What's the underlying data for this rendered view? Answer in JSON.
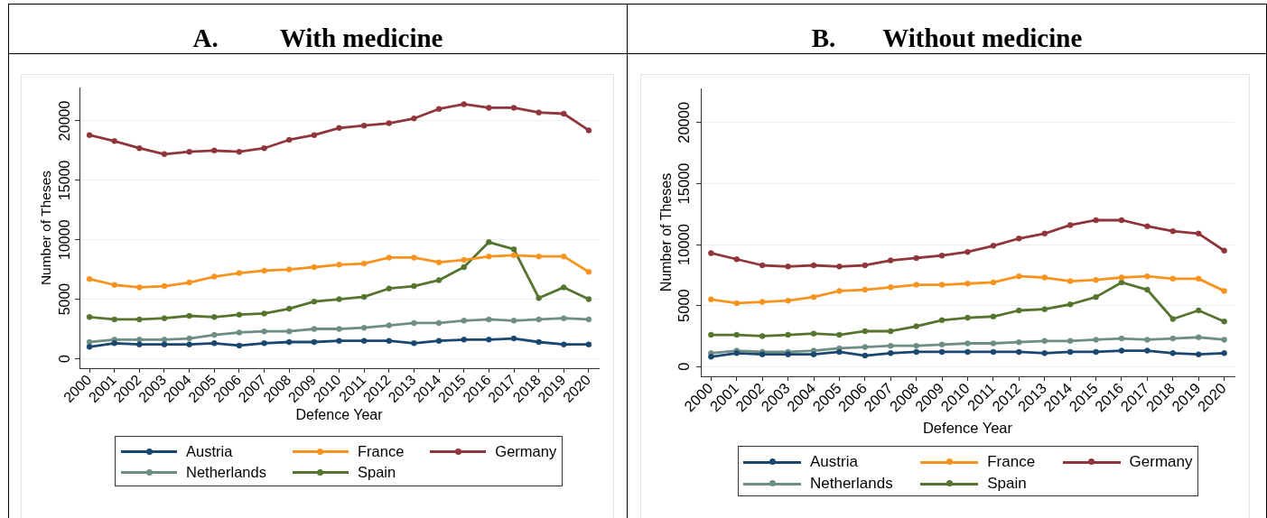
{
  "chart_data": [
    {
      "type": "line",
      "title": "A. With medicine",
      "xlabel": "Defence Year",
      "ylabel": "Number of Theses",
      "x": [
        2000,
        2001,
        2002,
        2003,
        2004,
        2005,
        2006,
        2007,
        2008,
        2009,
        2010,
        2011,
        2012,
        2013,
        2014,
        2015,
        2016,
        2017,
        2018,
        2019,
        2020
      ],
      "xlim": [
        1999.6,
        2020.4
      ],
      "xticks": [
        2000,
        2001,
        2002,
        2003,
        2004,
        2005,
        2006,
        2007,
        2008,
        2009,
        2010,
        2011,
        2012,
        2013,
        2014,
        2015,
        2016,
        2017,
        2018,
        2019,
        2020
      ],
      "ylim": [
        -800,
        22800
      ],
      "yticks": [
        0,
        5000,
        10000,
        15000,
        20000
      ],
      "grid": "y",
      "legend": "bottom",
      "marker": "circle",
      "series": [
        {
          "name": "Austria",
          "color": "#1a476f",
          "values": [
            1000,
            1300,
            1200,
            1200,
            1200,
            1300,
            1100,
            1300,
            1400,
            1400,
            1500,
            1500,
            1500,
            1300,
            1500,
            1600,
            1600,
            1700,
            1400,
            1200,
            1200
          ]
        },
        {
          "name": "France",
          "color": "#f7931e",
          "values": [
            6700,
            6200,
            6000,
            6100,
            6400,
            6900,
            7200,
            7400,
            7500,
            7700,
            7900,
            8000,
            8500,
            8500,
            8100,
            8300,
            8600,
            8700,
            8600,
            8600,
            7300
          ]
        },
        {
          "name": "Germany",
          "color": "#90353b",
          "values": [
            18800,
            18300,
            17700,
            17200,
            17400,
            17500,
            17400,
            17700,
            18400,
            18800,
            19400,
            19600,
            19800,
            20200,
            21000,
            21400,
            21100,
            21100,
            20700,
            20600,
            19200
          ]
        },
        {
          "name": "Netherlands",
          "color": "#6e8e84",
          "values": [
            1400,
            1600,
            1600,
            1600,
            1700,
            2000,
            2200,
            2300,
            2300,
            2500,
            2500,
            2600,
            2800,
            3000,
            3000,
            3200,
            3300,
            3200,
            3300,
            3400,
            3300
          ]
        },
        {
          "name": "Spain",
          "color": "#55752f",
          "values": [
            3500,
            3300,
            3300,
            3400,
            3600,
            3500,
            3700,
            3800,
            4200,
            4800,
            5000,
            5200,
            5900,
            6100,
            6600,
            7700,
            9800,
            9200,
            5100,
            6000,
            5000
          ]
        }
      ]
    },
    {
      "type": "line",
      "title": "B. Without medicine",
      "xlabel": "Defence Year",
      "ylabel": "Number of Theses",
      "x": [
        2000,
        2001,
        2002,
        2003,
        2004,
        2005,
        2006,
        2007,
        2008,
        2009,
        2010,
        2011,
        2012,
        2013,
        2014,
        2015,
        2016,
        2017,
        2018,
        2019,
        2020
      ],
      "xlim": [
        1999.6,
        2020.4
      ],
      "xticks": [
        2000,
        2001,
        2002,
        2003,
        2004,
        2005,
        2006,
        2007,
        2008,
        2009,
        2010,
        2011,
        2012,
        2013,
        2014,
        2015,
        2016,
        2017,
        2018,
        2019,
        2020
      ],
      "ylim": [
        -800,
        22800
      ],
      "yticks": [
        0,
        5000,
        10000,
        15000,
        20000
      ],
      "grid": "y",
      "legend": "bottom",
      "marker": "circle",
      "series": [
        {
          "name": "Austria",
          "color": "#1a476f",
          "values": [
            800,
            1100,
            1000,
            1000,
            1000,
            1200,
            900,
            1100,
            1200,
            1200,
            1200,
            1200,
            1200,
            1100,
            1200,
            1200,
            1300,
            1300,
            1100,
            1000,
            1100
          ]
        },
        {
          "name": "France",
          "color": "#f7931e",
          "values": [
            5500,
            5200,
            5300,
            5400,
            5700,
            6200,
            6300,
            6500,
            6700,
            6700,
            6800,
            6900,
            7400,
            7300,
            7000,
            7100,
            7300,
            7400,
            7200,
            7200,
            6200
          ]
        },
        {
          "name": "Germany",
          "color": "#90353b",
          "values": [
            9300,
            8800,
            8300,
            8200,
            8300,
            8200,
            8300,
            8700,
            8900,
            9100,
            9400,
            9900,
            10500,
            10900,
            11600,
            12000,
            12000,
            11500,
            11100,
            10900,
            9500
          ]
        },
        {
          "name": "Netherlands",
          "color": "#6e8e84",
          "values": [
            1100,
            1300,
            1200,
            1200,
            1300,
            1500,
            1600,
            1700,
            1700,
            1800,
            1900,
            1900,
            2000,
            2100,
            2100,
            2200,
            2300,
            2200,
            2300,
            2400,
            2200
          ]
        },
        {
          "name": "Spain",
          "color": "#55752f",
          "values": [
            2600,
            2600,
            2500,
            2600,
            2700,
            2600,
            2900,
            2900,
            3300,
            3800,
            4000,
            4100,
            4600,
            4700,
            5100,
            5700,
            6900,
            6300,
            3900,
            4600,
            3700
          ]
        }
      ]
    }
  ]
}
